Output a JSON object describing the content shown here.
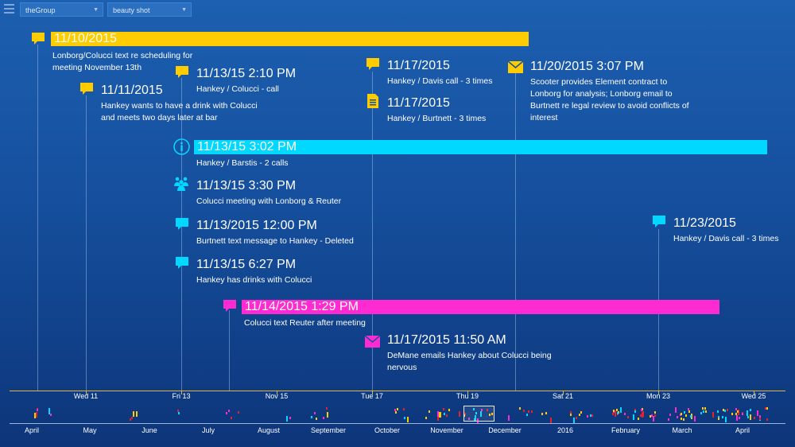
{
  "toolbar": {
    "group_select": "theGroup",
    "view_select": "beauty shot"
  },
  "colors": {
    "yellow": "#ffcc00",
    "cyan": "#00d8ff",
    "magenta": "#ff2bd2",
    "red": "#e8202a"
  },
  "events": [
    {
      "id": "e1",
      "title": "11/10/2015",
      "desc_lines": [
        "Lonborg/Colucci text re scheduling for",
        "meeting November 13th"
      ],
      "icon": "speech-bubble-icon",
      "color": "yellow",
      "bar": true
    },
    {
      "id": "e2",
      "title": "11/11/2015",
      "desc_lines": [
        "Hankey wants to have a drink with Colucci",
        "and meets two days later at bar"
      ],
      "icon": "speech-bubble-icon",
      "color": "yellow",
      "bar": false
    },
    {
      "id": "e3",
      "title": "11/13/15 2:10 PM",
      "desc_lines": [
        "Hankey / Colucci - call"
      ],
      "icon": "speech-bubble-icon",
      "color": "yellow",
      "bar": false
    },
    {
      "id": "e4",
      "title": "11/17/2015",
      "desc_lines": [
        "Hankey / Davis call - 3 times"
      ],
      "icon": "speech-bubble-icon",
      "color": "yellow",
      "bar": false
    },
    {
      "id": "e5",
      "title": "11/17/2015",
      "desc_lines": [
        "Hankey / Burtnett - 3 times"
      ],
      "icon": "document-icon",
      "color": "yellow",
      "bar": false
    },
    {
      "id": "e6",
      "title": "11/20/2015 3:07 PM",
      "desc_lines": [
        "Scooter provides Element contract to",
        "Lonborg for analysis; Lonborg email to",
        "Burtnett re legal review to avoid conflicts of",
        "interest"
      ],
      "icon": "envelope-icon",
      "color": "yellow",
      "bar": false
    },
    {
      "id": "e7",
      "title": "11/13/15 3:02 PM",
      "desc_lines": [
        "Hankey / Barstis - 2 calls"
      ],
      "icon": "info-icon",
      "color": "cyan",
      "bar": true
    },
    {
      "id": "e8",
      "title": "11/13/15 3:30 PM",
      "desc_lines": [
        "Colucci meeting with Lonborg & Reuter"
      ],
      "icon": "people-icon",
      "color": "cyan",
      "bar": false
    },
    {
      "id": "e9",
      "title": "11/13/2015 12:00 PM",
      "desc_lines": [
        "Burtnett text message to Hankey - Deleted"
      ],
      "icon": "speech-bubble-icon",
      "color": "cyan",
      "bar": false
    },
    {
      "id": "e10",
      "title": "11/13/15 6:27 PM",
      "desc_lines": [
        "Hankey has drinks with Colucci"
      ],
      "icon": "speech-bubble-icon",
      "color": "cyan",
      "bar": false
    },
    {
      "id": "e11",
      "title": "11/23/2015",
      "desc_lines": [
        "Hankey / Davis call - 3 times"
      ],
      "icon": "speech-bubble-icon",
      "color": "cyan",
      "bar": false
    },
    {
      "id": "e12",
      "title": "11/14/2015 1:29 PM",
      "desc_lines": [
        "Colucci text Reuter after meeting"
      ],
      "icon": "speech-bubble-icon",
      "color": "magenta",
      "bar": true
    },
    {
      "id": "e13",
      "title": "11/17/2015 11:50 AM",
      "desc_lines": [
        "DeMane emails Hankey about Colucci being",
        "nervous"
      ],
      "icon": "envelope-icon",
      "color": "magenta",
      "bar": false
    }
  ],
  "axis_labels": [
    "Wed 11",
    "Fri 13",
    "Nov 15",
    "Tue 17",
    "Thu 19",
    "Sat 21",
    "Mon 23",
    "Wed 25"
  ],
  "overview_labels": [
    "April",
    "May",
    "June",
    "July",
    "August",
    "September",
    "October",
    "November",
    "December",
    "2016",
    "February",
    "March",
    "April"
  ]
}
